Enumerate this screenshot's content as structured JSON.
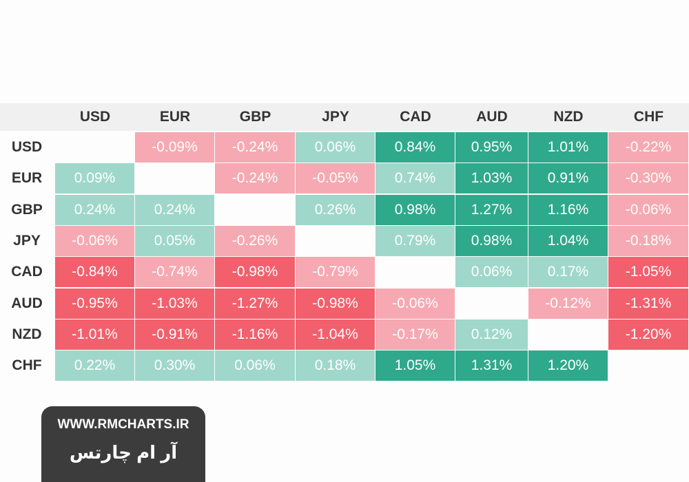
{
  "table": {
    "columns": [
      "USD",
      "EUR",
      "GBP",
      "JPY",
      "CAD",
      "AUD",
      "NZD",
      "CHF"
    ],
    "rows": [
      {
        "label": "USD",
        "cells": [
          null,
          "-0.09%",
          "-0.24%",
          "0.06%",
          "0.84%",
          "0.95%",
          "1.01%",
          "-0.22%"
        ]
      },
      {
        "label": "EUR",
        "cells": [
          "0.09%",
          null,
          "-0.24%",
          "-0.05%",
          "0.74%",
          "1.03%",
          "0.91%",
          "-0.30%"
        ]
      },
      {
        "label": "GBP",
        "cells": [
          "0.24%",
          "0.24%",
          null,
          "0.26%",
          "0.98%",
          "1.27%",
          "1.16%",
          "-0.06%"
        ]
      },
      {
        "label": "JPY",
        "cells": [
          "-0.06%",
          "0.05%",
          "-0.26%",
          null,
          "0.79%",
          "0.98%",
          "1.04%",
          "-0.18%"
        ]
      },
      {
        "label": "CAD",
        "cells": [
          "-0.84%",
          "-0.74%",
          "-0.98%",
          "-0.79%",
          null,
          "0.06%",
          "0.17%",
          "-1.05%"
        ]
      },
      {
        "label": "AUD",
        "cells": [
          "-0.95%",
          "-1.03%",
          "-1.27%",
          "-0.98%",
          "-0.06%",
          null,
          "-0.12%",
          "-1.31%"
        ]
      },
      {
        "label": "NZD",
        "cells": [
          "-1.01%",
          "-0.91%",
          "-1.16%",
          "-1.04%",
          "-0.17%",
          "0.12%",
          null,
          "-1.20%"
        ]
      },
      {
        "label": "CHF",
        "cells": [
          "0.22%",
          "0.30%",
          "0.06%",
          "0.18%",
          "1.05%",
          "1.31%",
          "1.20%",
          null
        ]
      }
    ]
  },
  "badge": {
    "url": "WWW.RMCHARTS.IR",
    "name": "آر ام چارتس"
  }
}
